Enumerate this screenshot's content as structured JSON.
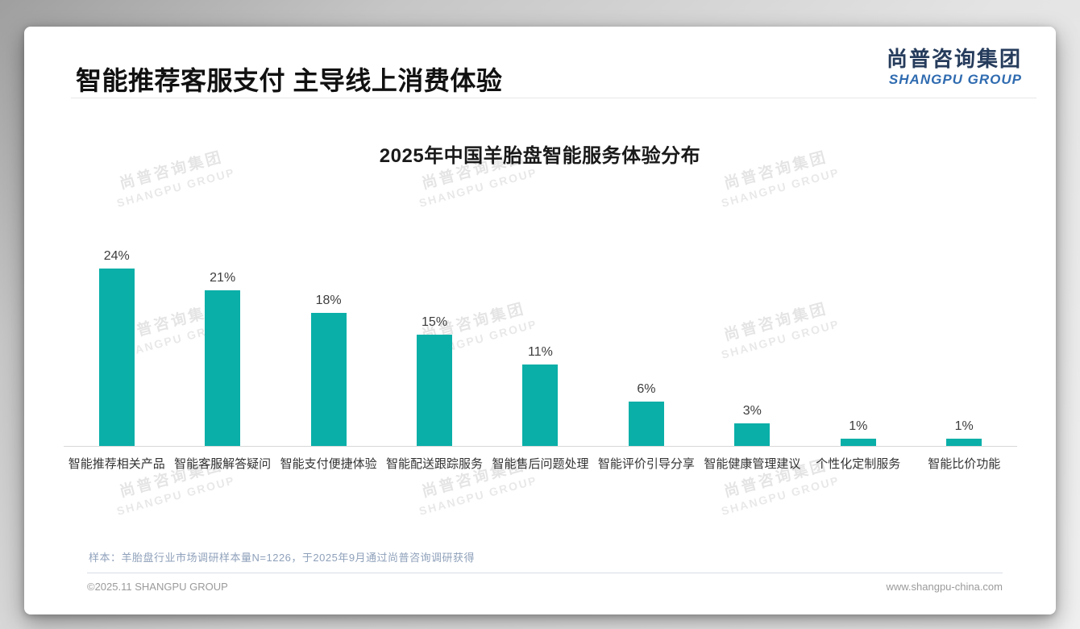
{
  "page": {
    "header": {
      "title": "智能推荐客服支付 主导线上消费体验",
      "logo": {
        "cn": "尚普咨询集团",
        "en": "SHANGPU GROUP"
      }
    },
    "watermark": {
      "line1": "尚普咨询集团",
      "line2": "SHANGPU GROUP"
    },
    "footnote": "样本：羊胎盘行业市场调研样本量N=1226，于2025年9月通过尚普咨询调研获得",
    "footer": {
      "left": "©2025.11 SHANGPU GROUP",
      "right": "www.shangpu-china.com"
    },
    "colors": {
      "bar": "#0aafa8",
      "logo_cn": "#263c5c",
      "logo_en": "#2f6bb0"
    }
  },
  "chart_data": {
    "type": "bar",
    "title": "2025年中国羊胎盘智能服务体验分布",
    "categories": [
      "智能推荐相关产品",
      "智能客服解答疑问",
      "智能支付便捷体验",
      "智能配送跟踪服务",
      "智能售后问题处理",
      "智能评价引导分享",
      "智能健康管理建议",
      "个性化定制服务",
      "智能比价功能"
    ],
    "values": [
      24,
      21,
      18,
      15,
      11,
      6,
      3,
      1,
      1
    ],
    "value_labels": [
      "24%",
      "21%",
      "18%",
      "15%",
      "11%",
      "6%",
      "3%",
      "1%",
      "1%"
    ],
    "unit": "%",
    "xlabel": "",
    "ylabel": "",
    "ylim": [
      0,
      26
    ],
    "gridlines": false,
    "legend": null,
    "bar_color": "#0aafa8"
  }
}
